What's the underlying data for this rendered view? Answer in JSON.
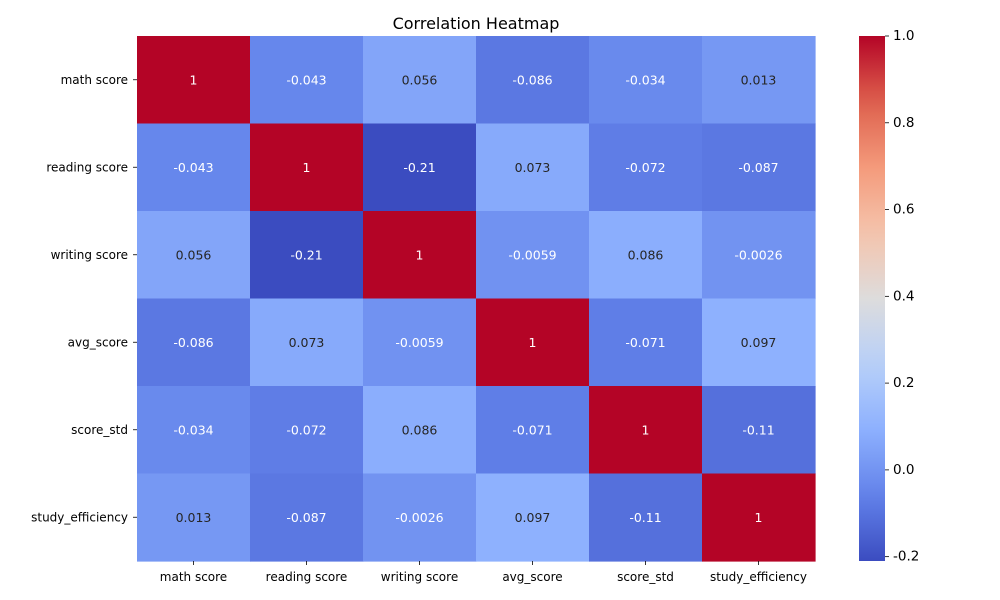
{
  "chart_data": {
    "type": "heatmap",
    "title": "Correlation Heatmap",
    "rows": [
      "math score",
      "reading score",
      "writing score",
      "avg_score",
      "score_std",
      "study_efficiency"
    ],
    "columns": [
      "math score",
      "reading score",
      "writing score",
      "avg_score",
      "score_std",
      "study_efficiency"
    ],
    "values": [
      [
        1,
        -0.043,
        0.056,
        -0.086,
        -0.034,
        0.013
      ],
      [
        -0.043,
        1,
        -0.21,
        0.073,
        -0.072,
        -0.087
      ],
      [
        0.056,
        -0.21,
        1,
        -0.0059,
        0.086,
        -0.0026
      ],
      [
        -0.086,
        0.073,
        -0.0059,
        1,
        -0.071,
        0.097
      ],
      [
        -0.034,
        -0.072,
        0.086,
        -0.071,
        1,
        -0.11
      ],
      [
        0.013,
        -0.087,
        -0.0026,
        0.097,
        -0.11,
        1
      ]
    ],
    "labels": [
      [
        "1",
        "-0.043",
        "0.056",
        "-0.086",
        "-0.034",
        "0.013"
      ],
      [
        "-0.043",
        "1",
        "-0.21",
        "0.073",
        "-0.072",
        "-0.087"
      ],
      [
        "0.056",
        "-0.21",
        "1",
        "-0.0059",
        "0.086",
        "-0.0026"
      ],
      [
        "-0.086",
        "0.073",
        "-0.0059",
        "1",
        "-0.071",
        "0.097"
      ],
      [
        "-0.034",
        "-0.072",
        "0.086",
        "-0.071",
        "1",
        "-0.11"
      ],
      [
        "0.013",
        "-0.087",
        "-0.0026",
        "0.097",
        "-0.11",
        "1"
      ]
    ],
    "colormap": "coolwarm",
    "color_range": [
      -0.21,
      1
    ],
    "colorbar_ticks": [
      "1.0",
      "0.8",
      "0.6",
      "0.4",
      "0.2",
      "0.0",
      "-0.2"
    ],
    "colorbar_tick_values": [
      1.0,
      0.8,
      0.6,
      0.4,
      0.2,
      0.0,
      -0.2
    ],
    "legend_placement": "right",
    "grid": false
  }
}
